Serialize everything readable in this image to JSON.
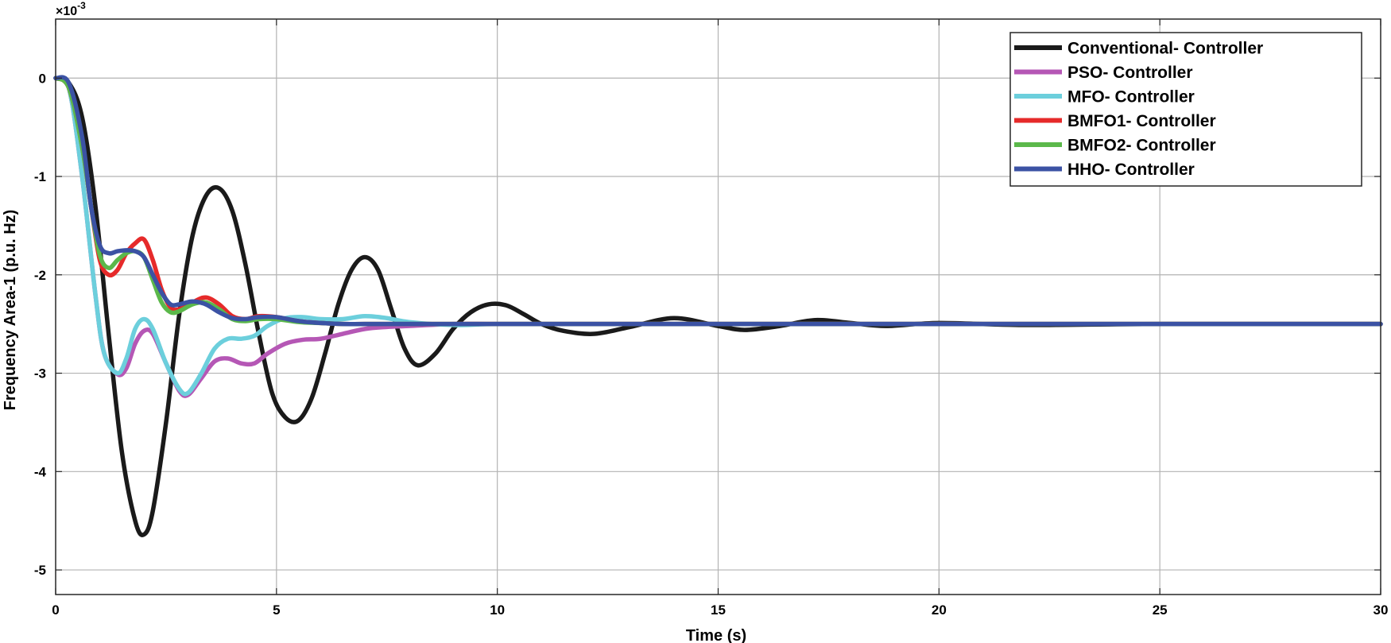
{
  "chart_data": {
    "type": "line",
    "title": "",
    "xlabel": "Time (s)",
    "ylabel": "Frequency Area-1 (p.u. Hz)",
    "y_multiplier": {
      "base": "×10",
      "exponent": "-3"
    },
    "xlim": [
      0,
      30
    ],
    "ylim": [
      -5.25,
      0.6
    ],
    "x_ticks": [
      0,
      5,
      10,
      15,
      20,
      25,
      30
    ],
    "y_ticks": [
      0,
      -1,
      -2,
      -3,
      -4,
      -5
    ],
    "grid": true,
    "legend_position": "top-right",
    "series": [
      {
        "name": "Conventional- Controller",
        "color": "#1a1a1a",
        "x": [
          0,
          0.3,
          0.6,
          0.9,
          1.2,
          1.5,
          1.8,
          2.0,
          2.2,
          2.5,
          2.8,
          3.1,
          3.4,
          3.7,
          4.0,
          4.3,
          4.6,
          4.9,
          5.2,
          5.5,
          5.8,
          6.1,
          6.4,
          6.7,
          7.0,
          7.3,
          7.6,
          7.9,
          8.2,
          8.6,
          9.0,
          9.4,
          9.8,
          10.2,
          10.6,
          11.0,
          11.5,
          12.2,
          13.0,
          14.0,
          15.0,
          15.6,
          16.4,
          17.2,
          18.0,
          18.8,
          20.0,
          22.0,
          25.0,
          30.0
        ],
        "y": [
          0,
          -0.05,
          -0.4,
          -1.3,
          -2.6,
          -3.8,
          -4.5,
          -4.64,
          -4.4,
          -3.5,
          -2.4,
          -1.6,
          -1.2,
          -1.12,
          -1.35,
          -1.9,
          -2.6,
          -3.2,
          -3.45,
          -3.48,
          -3.25,
          -2.8,
          -2.3,
          -1.95,
          -1.82,
          -1.95,
          -2.35,
          -2.75,
          -2.92,
          -2.8,
          -2.55,
          -2.38,
          -2.3,
          -2.31,
          -2.4,
          -2.5,
          -2.57,
          -2.6,
          -2.53,
          -2.44,
          -2.52,
          -2.56,
          -2.52,
          -2.46,
          -2.49,
          -2.52,
          -2.49,
          -2.51,
          -2.5,
          -2.5
        ]
      },
      {
        "name": "PSO- Controller",
        "color": "#b557b5",
        "x": [
          0,
          0.3,
          0.6,
          0.9,
          1.1,
          1.4,
          1.6,
          1.8,
          2.0,
          2.2,
          2.5,
          2.8,
          3.0,
          3.3,
          3.6,
          3.9,
          4.2,
          4.5,
          4.8,
          5.2,
          5.6,
          6.0,
          6.5,
          7.0,
          7.5,
          8.0,
          9.0,
          10.0,
          12.0,
          15.0,
          20.0,
          30.0
        ],
        "y": [
          0,
          -0.1,
          -1.0,
          -2.2,
          -2.8,
          -3.01,
          -2.95,
          -2.7,
          -2.57,
          -2.6,
          -2.9,
          -3.18,
          -3.22,
          -3.05,
          -2.88,
          -2.85,
          -2.9,
          -2.9,
          -2.8,
          -2.7,
          -2.66,
          -2.65,
          -2.6,
          -2.55,
          -2.53,
          -2.52,
          -2.5,
          -2.5,
          -2.5,
          -2.5,
          -2.5,
          -2.5
        ]
      },
      {
        "name": "MFO- Controller",
        "color": "#6ccfdc",
        "x": [
          0,
          0.3,
          0.6,
          0.9,
          1.1,
          1.4,
          1.6,
          1.8,
          2.0,
          2.2,
          2.5,
          2.8,
          3.0,
          3.3,
          3.6,
          3.9,
          4.2,
          4.5,
          4.8,
          5.2,
          5.6,
          6.0,
          6.5,
          7.0,
          7.5,
          8.0,
          9.0,
          10.0,
          12.0,
          15.0,
          20.0,
          30.0
        ],
        "y": [
          0,
          -0.1,
          -1.0,
          -2.2,
          -2.8,
          -3.0,
          -2.85,
          -2.55,
          -2.45,
          -2.55,
          -2.9,
          -3.16,
          -3.2,
          -3.0,
          -2.75,
          -2.65,
          -2.65,
          -2.62,
          -2.52,
          -2.44,
          -2.43,
          -2.45,
          -2.45,
          -2.42,
          -2.44,
          -2.48,
          -2.51,
          -2.5,
          -2.5,
          -2.5,
          -2.5,
          -2.5
        ]
      },
      {
        "name": "BMFO1- Controller",
        "color": "#e62a2a",
        "x": [
          0,
          0.3,
          0.6,
          0.8,
          1.0,
          1.2,
          1.4,
          1.6,
          1.8,
          2.0,
          2.2,
          2.4,
          2.6,
          2.8,
          3.1,
          3.4,
          3.7,
          4.0,
          4.3,
          4.6,
          5.0,
          5.5,
          6.0,
          6.5,
          7.0,
          8.0,
          10.0,
          15.0,
          20.0,
          30.0
        ],
        "y": [
          0,
          -0.1,
          -0.7,
          -1.3,
          -1.85,
          -2.0,
          -1.95,
          -1.78,
          -1.68,
          -1.64,
          -1.85,
          -2.15,
          -2.33,
          -2.35,
          -2.28,
          -2.23,
          -2.3,
          -2.42,
          -2.45,
          -2.42,
          -2.43,
          -2.47,
          -2.49,
          -2.5,
          -2.5,
          -2.5,
          -2.5,
          -2.5,
          -2.5,
          -2.5
        ]
      },
      {
        "name": "BMFO2- Controller",
        "color": "#5bb84a",
        "x": [
          0,
          0.3,
          0.6,
          0.8,
          1.0,
          1.2,
          1.4,
          1.6,
          1.8,
          2.0,
          2.2,
          2.4,
          2.6,
          2.8,
          3.1,
          3.4,
          3.7,
          4.0,
          4.3,
          4.6,
          5.0,
          5.5,
          6.0,
          6.5,
          7.0,
          8.0,
          10.0,
          15.0,
          20.0,
          30.0
        ],
        "y": [
          0,
          -0.1,
          -0.7,
          -1.3,
          -1.8,
          -1.93,
          -1.85,
          -1.78,
          -1.76,
          -1.82,
          -2.05,
          -2.28,
          -2.38,
          -2.37,
          -2.3,
          -2.28,
          -2.35,
          -2.45,
          -2.47,
          -2.45,
          -2.45,
          -2.48,
          -2.49,
          -2.5,
          -2.5,
          -2.5,
          -2.5,
          -2.5,
          -2.5,
          -2.5
        ]
      },
      {
        "name": "HHO- Controller",
        "color": "#3b52a4",
        "x": [
          0,
          0.3,
          0.6,
          0.8,
          1.0,
          1.2,
          1.4,
          1.6,
          1.8,
          2.0,
          2.2,
          2.4,
          2.6,
          2.8,
          3.1,
          3.4,
          3.7,
          4.0,
          4.3,
          4.6,
          5.0,
          5.5,
          6.0,
          6.5,
          7.0,
          8.0,
          10.0,
          15.0,
          20.0,
          30.0
        ],
        "y": [
          0,
          -0.05,
          -0.6,
          -1.3,
          -1.7,
          -1.78,
          -1.76,
          -1.75,
          -1.76,
          -1.82,
          -2.0,
          -2.18,
          -2.3,
          -2.3,
          -2.27,
          -2.3,
          -2.38,
          -2.44,
          -2.45,
          -2.43,
          -2.43,
          -2.47,
          -2.49,
          -2.5,
          -2.5,
          -2.5,
          -2.5,
          -2.5,
          -2.5,
          -2.5
        ]
      }
    ]
  }
}
